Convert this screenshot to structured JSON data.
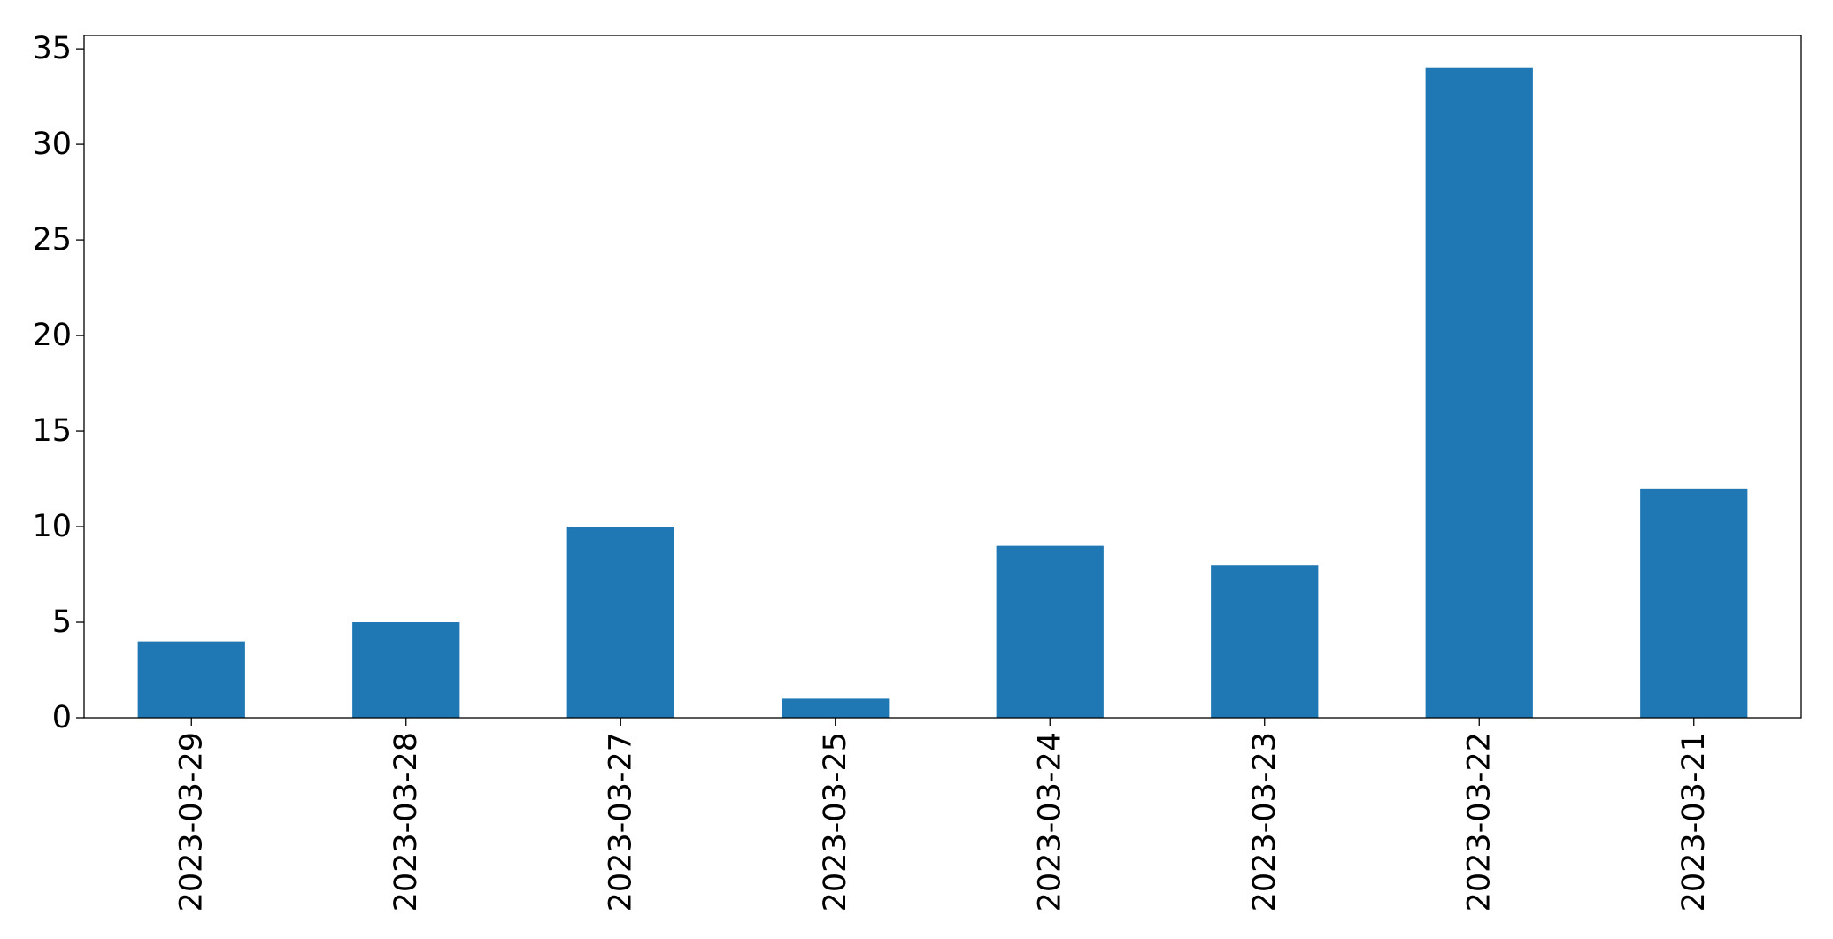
{
  "chart_data": {
    "type": "bar",
    "categories": [
      "2023-03-29",
      "2023-03-28",
      "2023-03-27",
      "2023-03-25",
      "2023-03-24",
      "2023-03-23",
      "2023-03-22",
      "2023-03-21"
    ],
    "values": [
      4,
      5,
      10,
      1,
      9,
      8,
      34,
      12
    ],
    "title": "",
    "xlabel": "",
    "ylabel": "",
    "ylim": [
      0,
      35.7
    ],
    "yticks": [
      0,
      5,
      10,
      15,
      20,
      25,
      30,
      35
    ],
    "grid": false,
    "legend": "none",
    "bar_color": "#1f77b4"
  }
}
